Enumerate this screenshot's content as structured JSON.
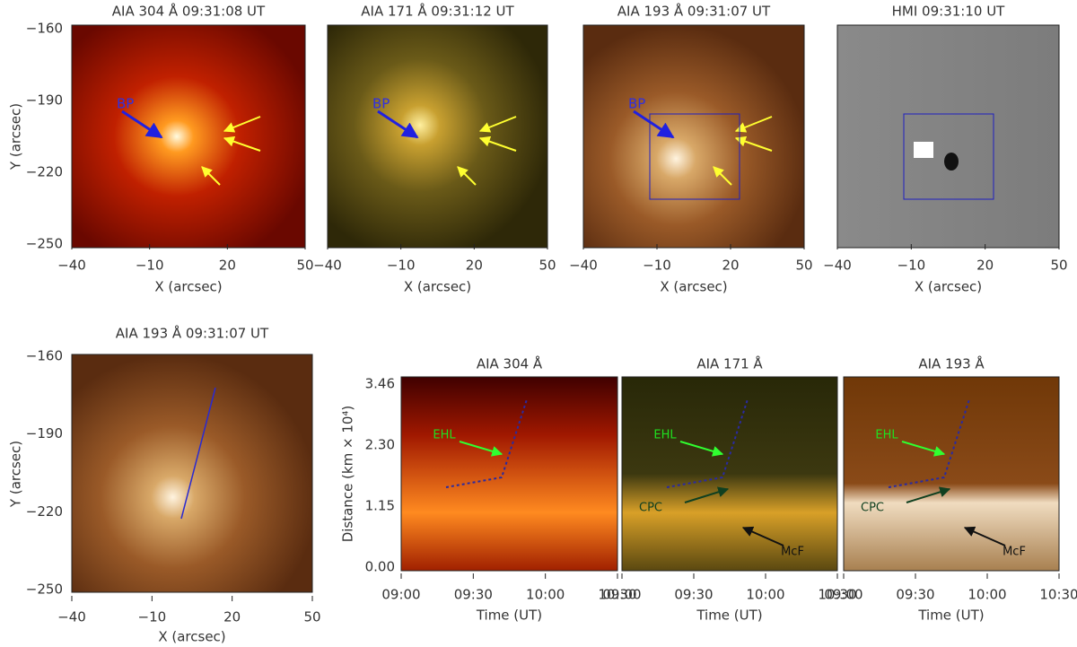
{
  "context_maps": [
    {
      "title": "AIA 304 Å 09:31:08 UT",
      "annotation": "BP"
    },
    {
      "title": "AIA 171 Å 09:31:12 UT",
      "annotation": "BP"
    },
    {
      "title": "AIA 193 Å 09:31:07 UT",
      "annotation": "BP"
    },
    {
      "title": "HMI 09:31:10 UT"
    }
  ],
  "map_axes": {
    "xlabel": "X (arcsec)",
    "ylabel": "Y (arcsec)",
    "xticks": [
      "−40",
      "−10",
      "20",
      "50"
    ],
    "yticks": [
      "−160",
      "−190",
      "−220",
      "−250"
    ]
  },
  "slit_map": {
    "title": "AIA 193 Å 09:31:07 UT"
  },
  "time_slices": {
    "ylabel": "Distance (km × 10⁴)",
    "xlabel": "Time (UT)",
    "xticks": [
      "09:00",
      "09:30",
      "10:00",
      "10:30"
    ],
    "yticks": [
      "3.46",
      "2.30",
      "1.15",
      "0.00"
    ],
    "panels": [
      {
        "title": "AIA 304 Å",
        "annotations": [
          "EHL"
        ]
      },
      {
        "title": "AIA 171 Å",
        "annotations": [
          "EHL",
          "CPC",
          "McF"
        ]
      },
      {
        "title": "AIA 193 Å",
        "annotations": [
          "EHL",
          "CPC",
          "McF"
        ]
      }
    ]
  }
}
